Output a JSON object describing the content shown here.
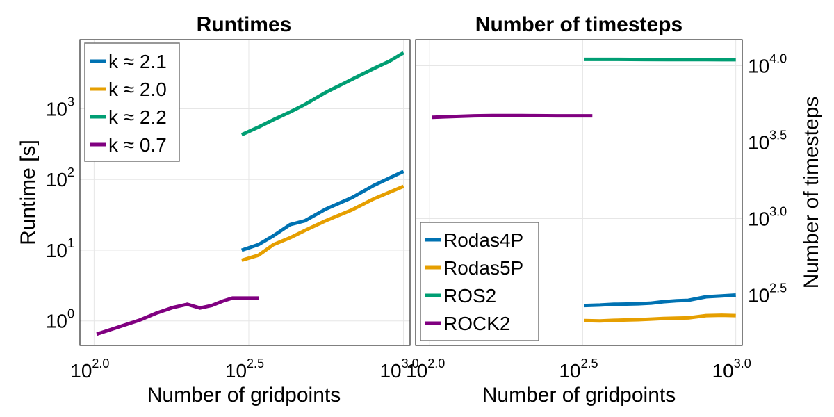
{
  "chart_data": [
    {
      "type": "line",
      "title": "Runtimes",
      "xlabel": "Number of gridpoints",
      "ylabel": "Runtime [s]",
      "x_scale": "log10",
      "y_scale": "log10",
      "xlim": [
        90,
        1050
      ],
      "ylim": [
        0.45,
        9500
      ],
      "grid": true,
      "legend_position": "top-left",
      "x_ticks": [
        {
          "base": "10",
          "exp": "2.0",
          "value": 100
        },
        {
          "base": "10",
          "exp": "2.5",
          "value": 316.23
        },
        {
          "base": "10",
          "exp": "3.0",
          "value": 1000
        }
      ],
      "y_ticks": [
        {
          "base": "10",
          "exp": "0",
          "value": 1
        },
        {
          "base": "10",
          "exp": "1",
          "value": 10
        },
        {
          "base": "10",
          "exp": "2",
          "value": 100
        },
        {
          "base": "10",
          "exp": "3",
          "value": 1000
        }
      ],
      "series": [
        {
          "name": "k ≈ 2.1",
          "color": "#0072b2",
          "x": [
            300,
            340,
            380,
            430,
            480,
            560,
            680,
            800,
            1000
          ],
          "y": [
            10,
            12,
            16,
            23,
            26,
            38,
            55,
            82,
            130
          ]
        },
        {
          "name": "k ≈ 2.0",
          "color": "#e69f00",
          "x": [
            300,
            340,
            380,
            430,
            480,
            560,
            680,
            800,
            1000
          ],
          "y": [
            7.2,
            8.5,
            12,
            15,
            19,
            26,
            37,
            53,
            80
          ]
        },
        {
          "name": "k ≈ 2.2",
          "color": "#009e73",
          "x": [
            300,
            340,
            380,
            430,
            480,
            560,
            680,
            800,
            900,
            1000
          ],
          "y": [
            430,
            550,
            700,
            900,
            1150,
            1700,
            2600,
            3700,
            4700,
            6200
          ]
        },
        {
          "name": "k ≈ 0.7",
          "color": "#800080",
          "x": [
            102,
            120,
            140,
            160,
            180,
            200,
            220,
            240,
            260,
            280,
            300,
            320,
            340
          ],
          "y": [
            0.65,
            0.82,
            1.02,
            1.3,
            1.55,
            1.72,
            1.52,
            1.65,
            1.9,
            2.1,
            2.1,
            2.1,
            2.1
          ]
        }
      ]
    },
    {
      "type": "line",
      "title": "Number of timesteps",
      "xlabel": "Number of gridpoints",
      "ylabel": "Number of timesteps",
      "x_scale": "log10",
      "y_scale": "log10",
      "xlim": [
        90,
        1050
      ],
      "ylim": [
        148,
        14800
      ],
      "grid": true,
      "legend_position": "bottom-left",
      "x_ticks": [
        {
          "base": "10",
          "exp": "2.0",
          "value": 100
        },
        {
          "base": "10",
          "exp": "2.5",
          "value": 316.23
        },
        {
          "base": "10",
          "exp": "3.0",
          "value": 1000
        }
      ],
      "y_ticks": [
        {
          "base": "10",
          "exp": "2.5",
          "value": 316.23
        },
        {
          "base": "10",
          "exp": "3.0",
          "value": 1000
        },
        {
          "base": "10",
          "exp": "3.5",
          "value": 3162.28
        },
        {
          "base": "10",
          "exp": "4.0",
          "value": 10000
        }
      ],
      "series": [
        {
          "name": "Rodas4P",
          "color": "#0072b2",
          "x": [
            320,
            360,
            400,
            440,
            480,
            530,
            580,
            640,
            700,
            800,
            900,
            1000
          ],
          "y": [
            270,
            272,
            275,
            276,
            277,
            280,
            286,
            290,
            292,
            308,
            312,
            316
          ]
        },
        {
          "name": "Rodas5P",
          "color": "#e69f00",
          "x": [
            320,
            360,
            400,
            440,
            480,
            530,
            580,
            640,
            700,
            800,
            900,
            1000
          ],
          "y": [
            215,
            214,
            216,
            217,
            218,
            220,
            222,
            223,
            224,
            232,
            233,
            232
          ]
        },
        {
          "name": "ROS2",
          "color": "#009e73",
          "x": [
            320,
            400,
            500,
            600,
            700,
            800,
            900,
            1000
          ],
          "y": [
            11000,
            10990,
            10970,
            10960,
            10950,
            10945,
            10940,
            10940
          ]
        },
        {
          "name": "ROCK2",
          "color": "#800080",
          "x": [
            102,
            120,
            140,
            160,
            180,
            200,
            220,
            240,
            260,
            280,
            300,
            320,
            340
          ],
          "y": [
            4600,
            4650,
            4700,
            4720,
            4720,
            4715,
            4710,
            4705,
            4700,
            4700,
            4700,
            4700,
            4700
          ]
        }
      ]
    }
  ]
}
